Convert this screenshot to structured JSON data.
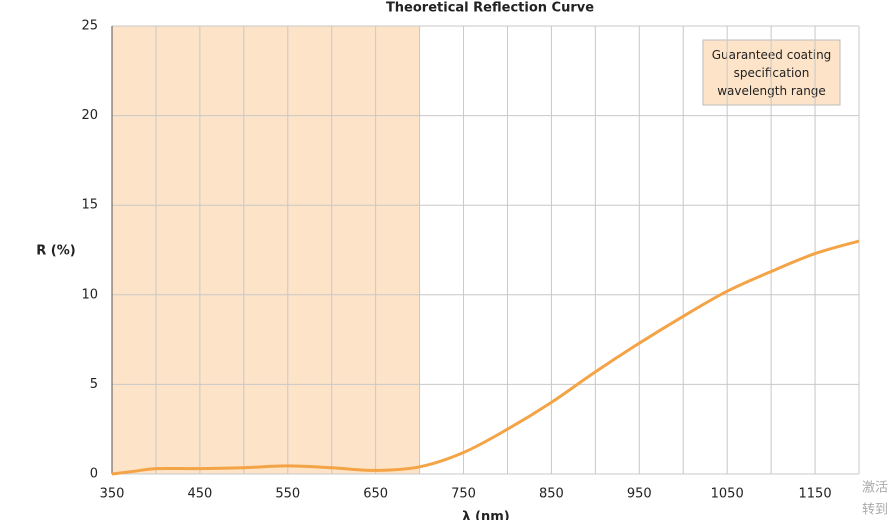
{
  "chart_data": {
    "type": "line",
    "title": "Theoretical Reflection Curve",
    "xlabel": "λ (nm)",
    "ylabel": "R (%)",
    "x": [
      350,
      375,
      400,
      450,
      500,
      550,
      600,
      650,
      700,
      750,
      800,
      850,
      900,
      950,
      1000,
      1050,
      1100,
      1150,
      1200
    ],
    "series": [
      {
        "color": "#f4a446",
        "values": [
          0.0,
          0.15,
          0.3,
          0.3,
          0.35,
          0.45,
          0.35,
          0.2,
          0.4,
          1.2,
          2.5,
          4.0,
          5.7,
          7.3,
          8.8,
          10.2,
          11.3,
          12.3,
          13.0
        ]
      }
    ],
    "xlim": [
      350,
      1200
    ],
    "xticks": [
      350,
      450,
      550,
      650,
      750,
      850,
      950,
      1050,
      1150
    ],
    "xminorticks": [
      400,
      500,
      600,
      700,
      800,
      900,
      1000,
      1100,
      1200
    ],
    "ylim": [
      0,
      25
    ],
    "yticks": [
      0,
      5,
      10,
      15,
      20,
      25
    ],
    "grid": true,
    "shaded_range": {
      "from": 350,
      "to": 700,
      "color": "#fde4c8",
      "label": "Guaranteed coating specification wavelength range"
    },
    "watermark": [
      "激活",
      "转到"
    ]
  }
}
